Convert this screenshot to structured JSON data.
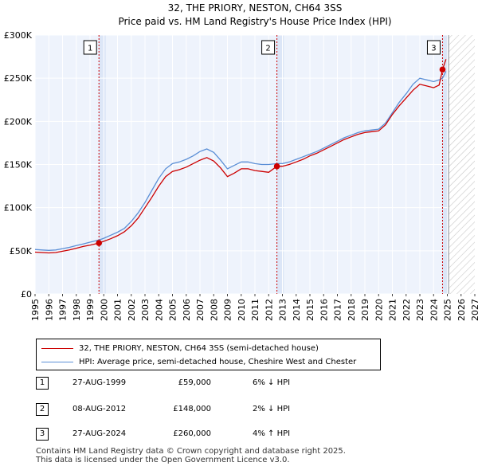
{
  "chart_data": {
    "type": "line",
    "title": "32, THE PRIORY, NESTON, CH64 3SS",
    "subtitle": "Price paid vs. HM Land Registry's House Price Index (HPI)",
    "xlim": [
      1995,
      2027
    ],
    "ylim": [
      0,
      300000
    ],
    "x_ticks": [
      "1995",
      "1996",
      "1997",
      "1998",
      "1999",
      "2000",
      "2001",
      "2002",
      "2003",
      "2004",
      "2005",
      "2006",
      "2007",
      "2008",
      "2009",
      "2010",
      "2011",
      "2012",
      "2013",
      "2014",
      "2015",
      "2016",
      "2017",
      "2018",
      "2019",
      "2020",
      "2021",
      "2022",
      "2023",
      "2024",
      "2025",
      "2026",
      "2027"
    ],
    "y_ticks": [
      {
        "value": 0,
        "label": "£0"
      },
      {
        "value": 50000,
        "label": "£50K"
      },
      {
        "value": 100000,
        "label": "£100K"
      },
      {
        "value": 150000,
        "label": "£150K"
      },
      {
        "value": 200000,
        "label": "£200K"
      },
      {
        "value": 250000,
        "label": "£250K"
      },
      {
        "value": 300000,
        "label": "£300K"
      }
    ],
    "sold_shade_ranges": [
      [
        1999.65,
        2000.15
      ],
      [
        2012.6,
        2013.1
      ],
      [
        2024.65,
        2025.15
      ]
    ],
    "forecast_start": 2025.1,
    "series": [
      {
        "name": "32, THE PRIORY, NESTON, CH64 3SS (semi-detached house)",
        "color": "#cc0000",
        "points": [
          [
            1995.0,
            48500
          ],
          [
            1995.5,
            48000
          ],
          [
            1996.0,
            47500
          ],
          [
            1996.5,
            48000
          ],
          [
            1997.0,
            49500
          ],
          [
            1997.5,
            51000
          ],
          [
            1998.0,
            53000
          ],
          [
            1998.5,
            55000
          ],
          [
            1999.0,
            56500
          ],
          [
            1999.65,
            59000
          ],
          [
            2000.0,
            61000
          ],
          [
            2000.5,
            64000
          ],
          [
            2001.0,
            67500
          ],
          [
            2001.5,
            72000
          ],
          [
            2002.0,
            79000
          ],
          [
            2002.5,
            88000
          ],
          [
            2003.0,
            100000
          ],
          [
            2003.5,
            112000
          ],
          [
            2004.0,
            125000
          ],
          [
            2004.5,
            136000
          ],
          [
            2005.0,
            142000
          ],
          [
            2005.5,
            144000
          ],
          [
            2006.0,
            147000
          ],
          [
            2006.5,
            151000
          ],
          [
            2007.0,
            155000
          ],
          [
            2007.5,
            158000
          ],
          [
            2008.0,
            154000
          ],
          [
            2008.5,
            146000
          ],
          [
            2009.0,
            136000
          ],
          [
            2009.5,
            140000
          ],
          [
            2010.0,
            145000
          ],
          [
            2010.5,
            145000
          ],
          [
            2011.0,
            143000
          ],
          [
            2011.5,
            142000
          ],
          [
            2012.0,
            141000
          ],
          [
            2012.6,
            148000
          ],
          [
            2013.0,
            148000
          ],
          [
            2013.5,
            150000
          ],
          [
            2014.0,
            153000
          ],
          [
            2014.5,
            156000
          ],
          [
            2015.0,
            160000
          ],
          [
            2015.5,
            163000
          ],
          [
            2016.0,
            167000
          ],
          [
            2016.5,
            171000
          ],
          [
            2017.0,
            175000
          ],
          [
            2017.5,
            179000
          ],
          [
            2018.0,
            182000
          ],
          [
            2018.5,
            185000
          ],
          [
            2019.0,
            187000
          ],
          [
            2019.5,
            188000
          ],
          [
            2020.0,
            189000
          ],
          [
            2020.5,
            196000
          ],
          [
            2021.0,
            208000
          ],
          [
            2021.5,
            218000
          ],
          [
            2022.0,
            227000
          ],
          [
            2022.5,
            236000
          ],
          [
            2023.0,
            243000
          ],
          [
            2023.5,
            241000
          ],
          [
            2024.0,
            239000
          ],
          [
            2024.4,
            242000
          ],
          [
            2024.65,
            260000
          ],
          [
            2024.9,
            272000
          ]
        ]
      },
      {
        "name": "HPI: Average price, semi-detached house, Cheshire West and Chester",
        "color": "#5b8fd6",
        "points": [
          [
            1995.0,
            51500
          ],
          [
            1995.5,
            51000
          ],
          [
            1996.0,
            50500
          ],
          [
            1996.5,
            51000
          ],
          [
            1997.0,
            52500
          ],
          [
            1997.5,
            54000
          ],
          [
            1998.0,
            56000
          ],
          [
            1998.5,
            58000
          ],
          [
            1999.0,
            60000
          ],
          [
            1999.65,
            62500
          ],
          [
            2000.0,
            64500
          ],
          [
            2000.5,
            68000
          ],
          [
            2001.0,
            71500
          ],
          [
            2001.5,
            76000
          ],
          [
            2002.0,
            84000
          ],
          [
            2002.5,
            94000
          ],
          [
            2003.0,
            106000
          ],
          [
            2003.5,
            120000
          ],
          [
            2004.0,
            134000
          ],
          [
            2004.5,
            145000
          ],
          [
            2005.0,
            151000
          ],
          [
            2005.5,
            153000
          ],
          [
            2006.0,
            156000
          ],
          [
            2006.5,
            160000
          ],
          [
            2007.0,
            165000
          ],
          [
            2007.5,
            168000
          ],
          [
            2008.0,
            164000
          ],
          [
            2008.5,
            155000
          ],
          [
            2009.0,
            145000
          ],
          [
            2009.5,
            149000
          ],
          [
            2010.0,
            153000
          ],
          [
            2010.5,
            153000
          ],
          [
            2011.0,
            151000
          ],
          [
            2011.5,
            150000
          ],
          [
            2012.0,
            150000
          ],
          [
            2012.6,
            151000
          ],
          [
            2013.0,
            151000
          ],
          [
            2013.5,
            153000
          ],
          [
            2014.0,
            156000
          ],
          [
            2014.5,
            159000
          ],
          [
            2015.0,
            162000
          ],
          [
            2015.5,
            165000
          ],
          [
            2016.0,
            169000
          ],
          [
            2016.5,
            173000
          ],
          [
            2017.0,
            177000
          ],
          [
            2017.5,
            181000
          ],
          [
            2018.0,
            184000
          ],
          [
            2018.5,
            187000
          ],
          [
            2019.0,
            189000
          ],
          [
            2019.5,
            190000
          ],
          [
            2020.0,
            191000
          ],
          [
            2020.5,
            198000
          ],
          [
            2021.0,
            210000
          ],
          [
            2021.5,
            222000
          ],
          [
            2022.0,
            232000
          ],
          [
            2022.5,
            243000
          ],
          [
            2023.0,
            250000
          ],
          [
            2023.5,
            248000
          ],
          [
            2024.0,
            246000
          ],
          [
            2024.4,
            248000
          ],
          [
            2024.65,
            250000
          ],
          [
            2024.9,
            258000
          ]
        ]
      }
    ],
    "sales": [
      {
        "n": "1",
        "x": 1999.65,
        "value": 59000
      },
      {
        "n": "2",
        "x": 2012.6,
        "value": 148000
      },
      {
        "n": "3",
        "x": 2024.65,
        "value": 260000
      }
    ]
  },
  "legend": {
    "property_label": "32, THE PRIORY, NESTON, CH64 3SS (semi-detached house)",
    "hpi_label": "HPI: Average price, semi-detached house, Cheshire West and Chester"
  },
  "sales_table": [
    {
      "n": "1",
      "date": "27-AUG-1999",
      "price": "£59,000",
      "hpi": "6% ↓ HPI"
    },
    {
      "n": "2",
      "date": "08-AUG-2012",
      "price": "£148,000",
      "hpi": "2% ↓ HPI"
    },
    {
      "n": "3",
      "date": "27-AUG-2024",
      "price": "£260,000",
      "hpi": "4% ↑ HPI"
    }
  ],
  "footer": {
    "line1": "Contains HM Land Registry data © Crown copyright and database right 2025.",
    "line2": "This data is licensed under the Open Government Licence v3.0."
  },
  "colors": {
    "property": "#cc0000",
    "hpi": "#5b8fd6",
    "plot_bg": "#eef3fc",
    "grid": "#ffffff"
  }
}
